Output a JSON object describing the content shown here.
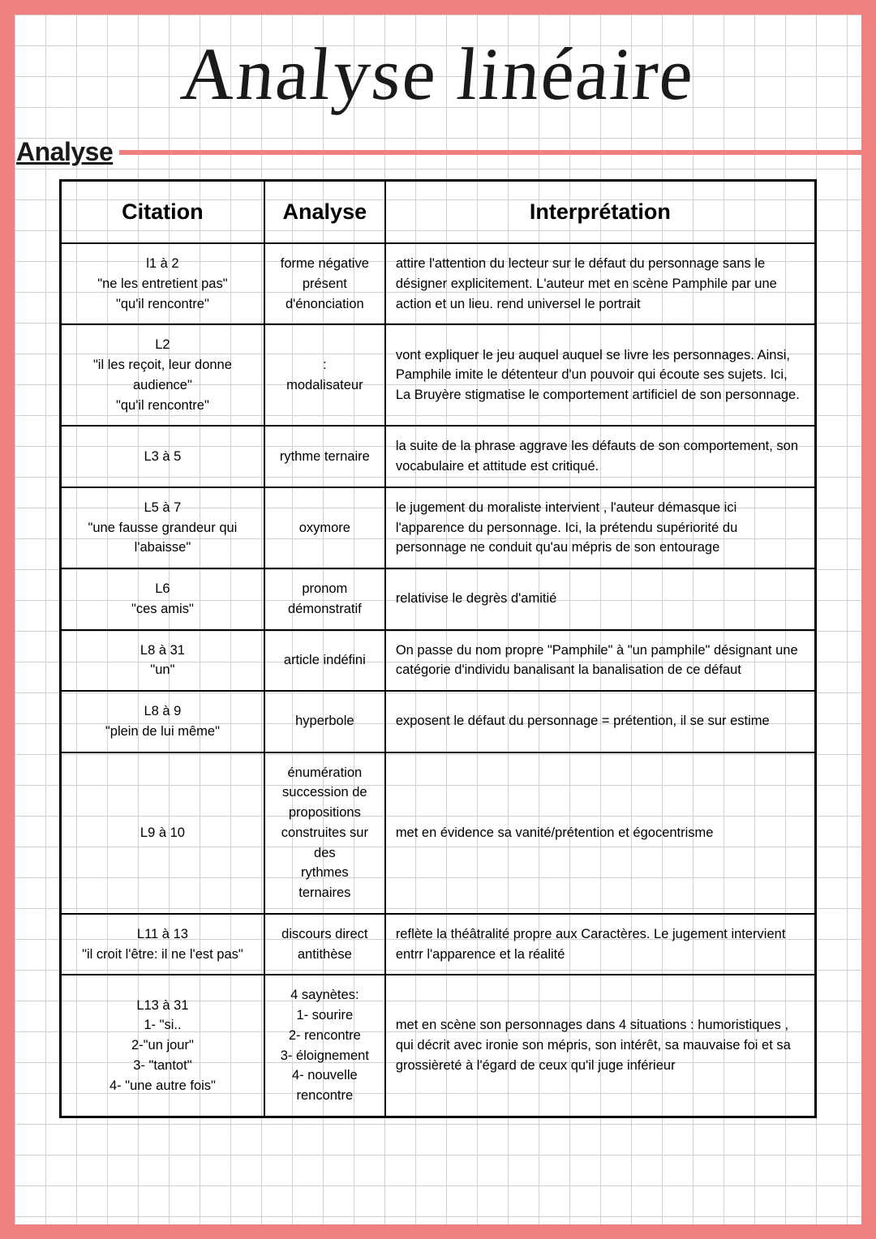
{
  "colors": {
    "frame": "#f08080",
    "paper": "#ffffff",
    "grid": "#d0d0d0",
    "ink": "#1a1a1a",
    "rule": "#f08080"
  },
  "title": "Analyse linéaire",
  "section_label": "Analyse",
  "table": {
    "headers": {
      "c1": "Citation",
      "c2": "Analyse",
      "c3": "Interprétation"
    },
    "rows": [
      {
        "citation": [
          "l1 à 2",
          "\"ne les entretient pas\"",
          "\"qu'il rencontre\""
        ],
        "analyse": [
          "forme négative",
          "présent d'énonciation"
        ],
        "interpretation": "attire l'attention du lecteur sur le défaut du personnage sans le désigner explicitement. L'auteur met en scène Pamphile par une action et un lieu. rend universel le portrait"
      },
      {
        "citation": [
          "L2",
          "\"il les reçoit, leur donne audience\"",
          "\"qu'il rencontre\""
        ],
        "analyse": [
          ":",
          "modalisateur"
        ],
        "interpretation": "vont expliquer le jeu auquel auquel se livre les personnages. Ainsi, Pamphile imite le détenteur d'un pouvoir qui écoute ses sujets. Ici, La Bruyère stigmatise le comportement artificiel de son personnage."
      },
      {
        "citation": [
          "L3 à 5"
        ],
        "analyse": [
          "rythme ternaire"
        ],
        "interpretation": "la suite de la phrase aggrave les défauts de son comportement, son vocabulaire et attitude est critiqué."
      },
      {
        "citation": [
          "L5 à 7",
          "\"une fausse grandeur qui l'abaisse\""
        ],
        "analyse": [
          "oxymore"
        ],
        "interpretation": "le jugement du moraliste intervient , l'auteur démasque ici l'apparence du personnage. Ici, la prétendu supériorité du personnage ne conduit qu'au mépris de son entourage"
      },
      {
        "citation": [
          "L6",
          "\"ces amis\""
        ],
        "analyse": [
          "pronom démonstratif"
        ],
        "interpretation": "relativise le degrès d'amitié"
      },
      {
        "citation": [
          "L8 à 31",
          "\"un\""
        ],
        "analyse": [
          "article indéfini"
        ],
        "interpretation": "On passe du nom propre \"Pamphile\" à \"un pamphile\" désignant une catégorie d'individu banalisant la banalisation de ce défaut"
      },
      {
        "citation": [
          "L8 à 9",
          "\"plein de lui même\""
        ],
        "analyse": [
          "hyperbole"
        ],
        "interpretation": "exposent le défaut du personnage = prétention, il se sur estime"
      },
      {
        "citation": [
          "L9 à 10"
        ],
        "analyse": [
          "énumération",
          "succession de propositions",
          "construites sur des",
          "rythmes ternaires"
        ],
        "interpretation": "met en évidence sa vanité/prétention et égocentrisme"
      },
      {
        "citation": [
          "L11 à 13",
          "\"il croit l'être: il ne l'est pas\""
        ],
        "analyse": [
          "discours direct",
          "antithèse"
        ],
        "interpretation": "reflète la théâtralité propre aux Caractères. Le jugement intervient entrr l'apparence et la réalité"
      },
      {
        "citation": [
          "L13 à 31",
          "1- \"si..",
          "2-\"un jour\"",
          "3- \"tantot\"",
          "4- \"une autre fois\""
        ],
        "analyse": [
          "4 saynètes:",
          "1- sourire",
          "2- rencontre",
          "3- éloignement",
          "4- nouvelle rencontre"
        ],
        "interpretation": "met en scène son personnages dans 4 situations : humoristiques , qui décrit avec ironie son mépris, son intérêt, sa mauvaise foi et sa grossièreté à l'égard de ceux qu'il juge inférieur"
      }
    ]
  }
}
